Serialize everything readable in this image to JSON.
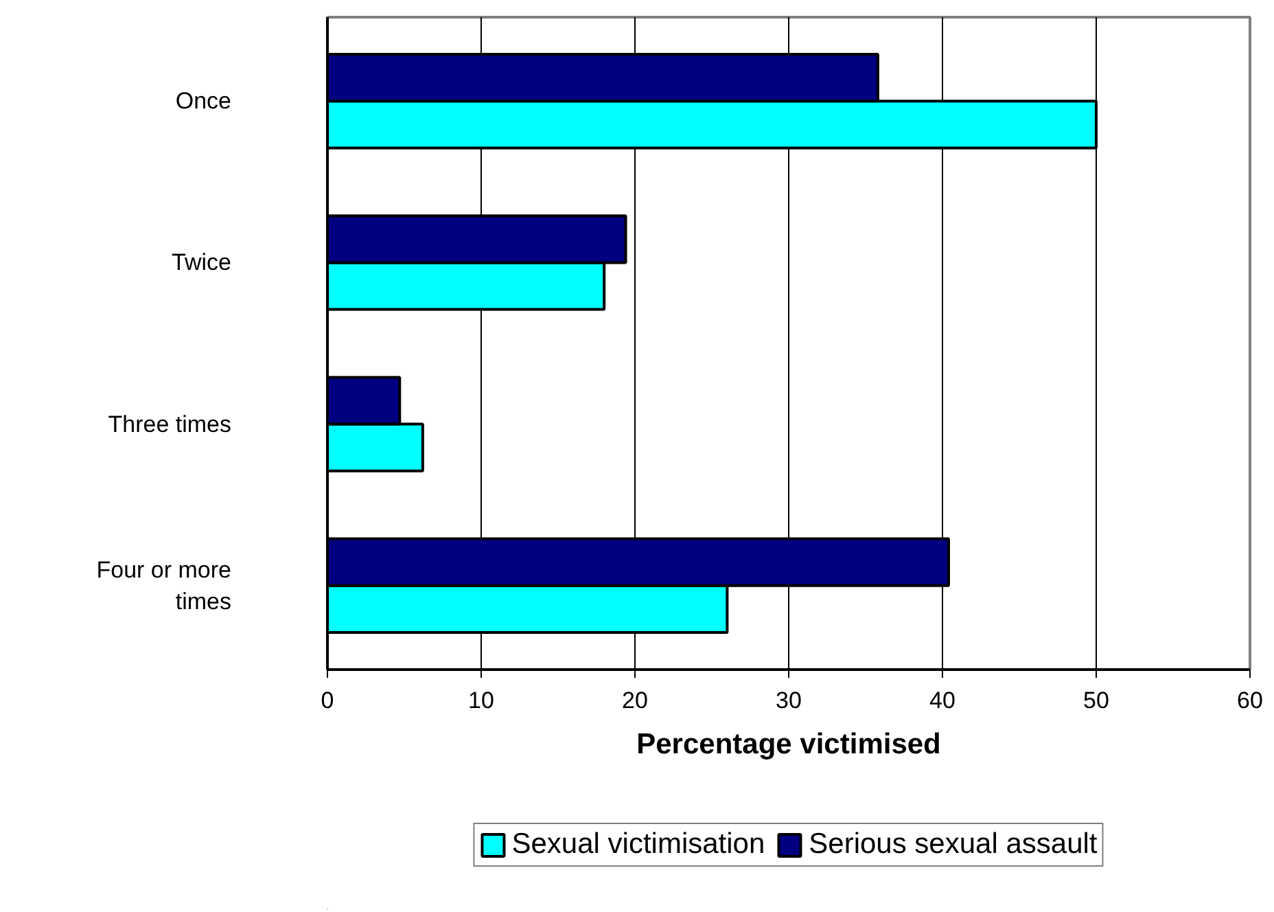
{
  "chart_data": {
    "type": "bar",
    "orientation": "horizontal",
    "xlabel": "Percentage victimised",
    "categories": [
      "Once",
      "Twice",
      "Three times",
      "Four or more\ntimes"
    ],
    "series": [
      {
        "name": "Sexual victimisation",
        "color": "#00ffff",
        "values": [
          50,
          18,
          6.2,
          26
        ]
      },
      {
        "name": "Serious sexual assault",
        "color": "#000080",
        "values": [
          35.8,
          19.4,
          4.7,
          40.4
        ]
      }
    ],
    "xlim": [
      0,
      60
    ],
    "xticks": [
      0,
      10,
      20,
      30,
      40,
      50,
      60
    ],
    "grid": "x",
    "legend": "bottom"
  }
}
